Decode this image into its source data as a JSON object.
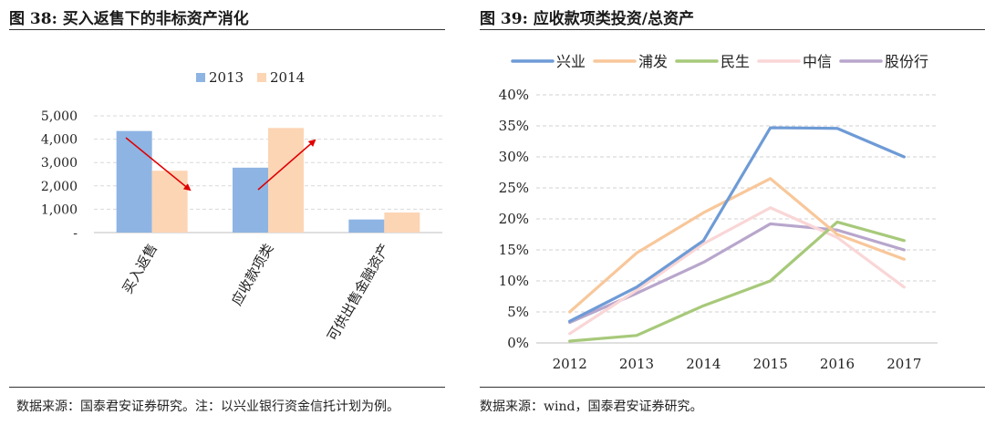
{
  "left": {
    "title": "图 38:  买入返售下的非标资产消化",
    "source": "数据来源：国泰君安证券研究。注：以兴业银行资金信托计划为例。",
    "colors": {
      "s2013": "#8EB4E3",
      "s2014": "#FCD5B5",
      "arrow": "#E00000",
      "grid": "#d9d9d9"
    }
  },
  "right": {
    "title": "图 39:  应收款项类投资/总资产",
    "source": "数据来源：wind，国泰君安证券研究。",
    "colors": {
      "兴业": "#6E9BD6",
      "浦发": "#F8C79A",
      "民生": "#A7C97A",
      "中信": "#FAD6D6",
      "股份行": "#B8A6CC",
      "grid": "#d0d0d0"
    }
  },
  "chart_data": [
    {
      "type": "bar",
      "categories": [
        "买入返售",
        "应收款项类",
        "可供出售金融资产"
      ],
      "series": [
        {
          "name": "2013",
          "values": [
            4350,
            2780,
            560
          ]
        },
        {
          "name": "2014",
          "values": [
            2650,
            4480,
            860
          ]
        }
      ],
      "yticks": [
        "5,000",
        "4,000",
        "3,000",
        "2,000",
        "1,000",
        "-"
      ],
      "ylim": [
        0,
        5000
      ],
      "legend": "top",
      "grid": true,
      "annotations": [
        "arrow-down over 买入返售",
        "arrow-up over 应收款项类"
      ]
    },
    {
      "type": "line",
      "x": [
        "2012",
        "2013",
        "2014",
        "2015",
        "2016",
        "2017"
      ],
      "series": [
        {
          "name": "兴业",
          "values": [
            3.5,
            9,
            16.5,
            34.7,
            34.6,
            30
          ]
        },
        {
          "name": "浦发",
          "values": [
            5,
            14.5,
            21,
            26.5,
            17.5,
            13.5
          ]
        },
        {
          "name": "民生",
          "values": [
            0.3,
            1.2,
            6,
            10,
            19.5,
            16.5
          ]
        },
        {
          "name": "中信",
          "values": [
            1.5,
            8.5,
            16,
            21.8,
            17,
            9
          ]
        },
        {
          "name": "股份行",
          "values": [
            3.3,
            8,
            13,
            19.2,
            18.2,
            15
          ]
        }
      ],
      "yticks": [
        "40%",
        "35%",
        "30%",
        "25%",
        "20%",
        "15%",
        "10%",
        "5%",
        "0%"
      ],
      "ylim": [
        0,
        40
      ],
      "legend": "top",
      "grid": true
    }
  ]
}
